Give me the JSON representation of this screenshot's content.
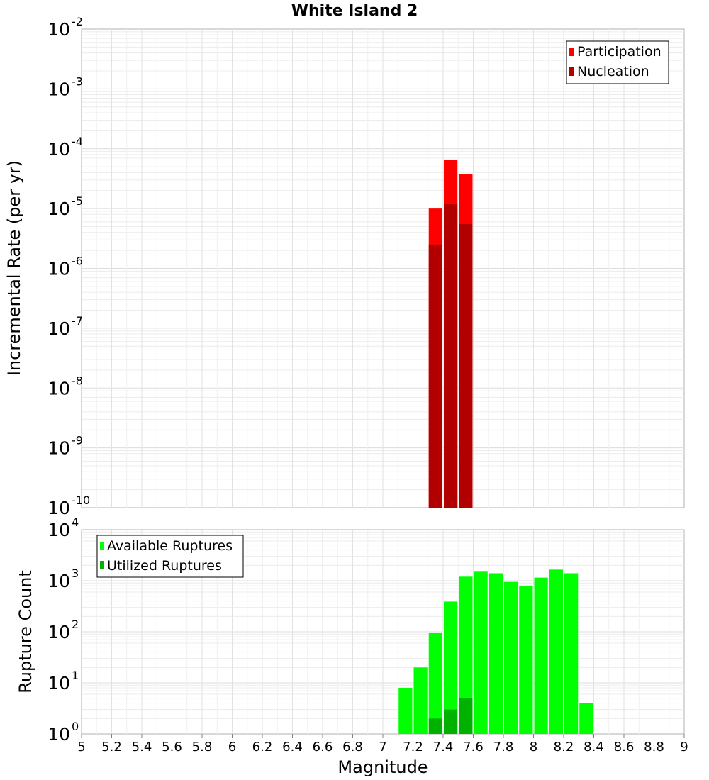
{
  "chart_data": [
    {
      "type": "bar",
      "title": "White Island 2",
      "xlabel": "",
      "ylabel": "Incremental Rate (per yr)",
      "yscale": "log",
      "ylim": [
        1e-10,
        0.01
      ],
      "xlim": [
        5,
        9
      ],
      "grid": true,
      "legend_position": "top-right",
      "y_tick_exponents": [
        "-10",
        "-9",
        "-8",
        "-7",
        "-6",
        "-5",
        "-4",
        "-3",
        "-2"
      ],
      "y_tick_base": "10",
      "series": [
        {
          "name": "Participation",
          "color": "#ff0000",
          "x": [
            7.35,
            7.45,
            7.55
          ],
          "values": [
            1e-05,
            6.5e-05,
            3.8e-05
          ]
        },
        {
          "name": "Nucleation",
          "color": "#b20000",
          "x": [
            7.35,
            7.45,
            7.55
          ],
          "values": [
            2.5e-06,
            1.2e-05,
            5.5e-06
          ]
        }
      ]
    },
    {
      "type": "bar",
      "title": "",
      "xlabel": "Magnitude",
      "ylabel": "Rupture Count",
      "yscale": "log",
      "ylim": [
        1,
        10000
      ],
      "xlim": [
        5,
        9
      ],
      "grid": true,
      "legend_position": "top-left",
      "y_tick_exponents": [
        "0",
        "1",
        "2",
        "3",
        "4"
      ],
      "y_tick_base": "10",
      "x_ticks": [
        "5",
        "5.2",
        "5.4",
        "5.6",
        "5.8",
        "6",
        "6.2",
        "6.4",
        "6.6",
        "6.8",
        "7",
        "7.2",
        "7.4",
        "7.6",
        "7.8",
        "8",
        "8.2",
        "8.4",
        "8.6",
        "8.8",
        "9"
      ],
      "series": [
        {
          "name": "Available Ruptures",
          "color": "#00ff00",
          "x": [
            6.75,
            6.95,
            7.05,
            7.15,
            7.25,
            7.35,
            7.45,
            7.55,
            7.65,
            7.75,
            7.85,
            7.95,
            8.05,
            8.15,
            8.25,
            8.35
          ],
          "values": [
            1,
            1,
            1,
            8,
            20,
            95,
            390,
            1200,
            1550,
            1400,
            950,
            800,
            1150,
            1650,
            1400,
            4
          ]
        },
        {
          "name": "Utilized Ruptures",
          "color": "#00b200",
          "x": [
            7.35,
            7.45,
            7.55
          ],
          "values": [
            2,
            3,
            5
          ]
        }
      ]
    }
  ]
}
